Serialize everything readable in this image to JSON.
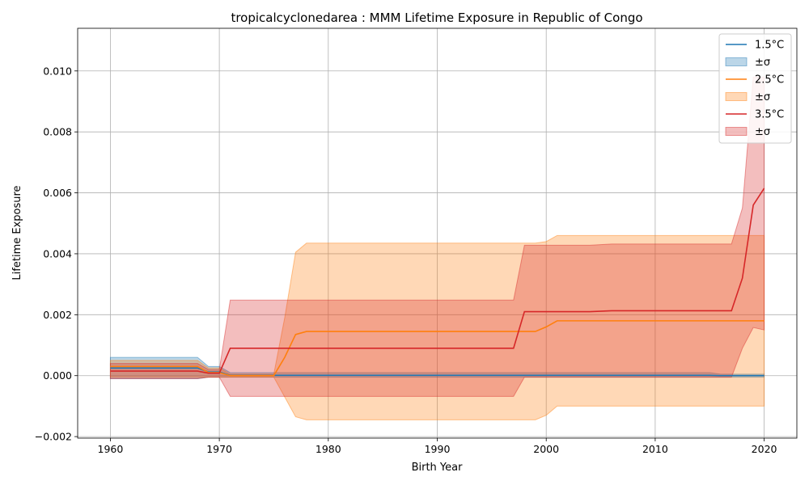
{
  "chart_data": {
    "type": "line",
    "title": "tropicalcyclonedarea : MMM Lifetime Exposure in Republic of Congo",
    "xlabel": "Birth Year",
    "ylabel": "Lifetime Exposure",
    "xlim": [
      1957,
      2023
    ],
    "ylim": [
      -0.00205,
      0.0114
    ],
    "xticks": [
      1960,
      1970,
      1980,
      1990,
      2000,
      2010,
      2020
    ],
    "xtick_labels": [
      "1960",
      "1970",
      "1980",
      "1990",
      "2000",
      "2010",
      "2020"
    ],
    "yticks": [
      -0.002,
      0,
      0.002,
      0.004,
      0.006,
      0.008,
      0.01
    ],
    "ytick_labels": [
      "−0.002",
      "0.000",
      "0.002",
      "0.004",
      "0.006",
      "0.008",
      "0.010"
    ],
    "grid": true,
    "legend_position": "top-right",
    "series": [
      {
        "name": "1.5°C",
        "band_label": "±σ",
        "color": "#1f77b4",
        "x": [
          1960,
          1968,
          1969,
          1970,
          1971,
          1975,
          2015,
          2016,
          2020
        ],
        "values": [
          0.00025,
          0.00025,
          0.00012,
          0.00012,
          1e-05,
          1e-05,
          1e-05,
          0.0,
          0.0
        ],
        "lower": [
          -0.0001,
          -0.0001,
          -5e-05,
          -5e-05,
          -5e-05,
          -5e-05,
          -5e-05,
          -5e-05,
          -5e-05
        ],
        "upper": [
          0.0006,
          0.0006,
          0.0003,
          0.0003,
          0.0001,
          0.0001,
          0.0001,
          5e-05,
          5e-05
        ]
      },
      {
        "name": "2.5°C",
        "band_label": "±σ",
        "color": "#ff7f0e",
        "x": [
          1960,
          1968,
          1969,
          1970,
          1971,
          1975,
          1976,
          1977,
          1978,
          1980,
          1997,
          1999,
          2000,
          2001,
          2005,
          2010,
          2017,
          2018,
          2019,
          2020
        ],
        "values": [
          0.0003,
          0.0003,
          0.0001,
          0.0001,
          0.0,
          0.0,
          0.0006,
          0.00135,
          0.00145,
          0.00145,
          0.00145,
          0.00145,
          0.0016,
          0.0018,
          0.0018,
          0.0018,
          0.0018,
          0.0018,
          0.0018,
          0.0018
        ],
        "lower": [
          -5e-05,
          -5e-05,
          -5e-05,
          -5e-05,
          -5e-05,
          -5e-05,
          -0.0007,
          -0.00135,
          -0.00145,
          -0.00145,
          -0.00145,
          -0.00145,
          -0.0013,
          -0.001,
          -0.001,
          -0.001,
          -0.001,
          -0.001,
          -0.001,
          -0.001
        ],
        "upper": [
          0.0005,
          0.0005,
          0.00025,
          0.00025,
          5e-05,
          5e-05,
          0.0019,
          0.00405,
          0.00435,
          0.00435,
          0.00435,
          0.00435,
          0.0044,
          0.0046,
          0.0046,
          0.0046,
          0.0046,
          0.0046,
          0.0046,
          0.0046
        ]
      },
      {
        "name": "3.5°C",
        "band_label": "±σ",
        "color": "#d62728",
        "x": [
          1960,
          1968,
          1969,
          1970,
          1971,
          1975,
          1980,
          1990,
          1997,
          1998,
          2000,
          2004,
          2006,
          2010,
          2016,
          2017,
          2018,
          2019,
          2020
        ],
        "values": [
          0.00015,
          0.00015,
          8e-05,
          8e-05,
          0.0009,
          0.0009,
          0.0009,
          0.0009,
          0.0009,
          0.0021,
          0.0021,
          0.0021,
          0.00213,
          0.00213,
          0.00213,
          0.00213,
          0.0032,
          0.0056,
          0.00615
        ],
        "lower": [
          -0.0001,
          -0.0001,
          -5e-05,
          -5e-05,
          -0.00068,
          -0.00068,
          -0.00068,
          -0.00068,
          -0.00068,
          -5e-05,
          -5e-05,
          -5e-05,
          -5e-05,
          -5e-05,
          -5e-05,
          -5e-05,
          0.0009,
          0.00158,
          0.0015
        ],
        "upper": [
          0.0004,
          0.0004,
          0.0002,
          0.0002,
          0.00248,
          0.00248,
          0.00248,
          0.00248,
          0.00248,
          0.00428,
          0.00428,
          0.00428,
          0.00432,
          0.00432,
          0.00432,
          0.00432,
          0.0055,
          0.0098,
          0.0098
        ]
      }
    ]
  }
}
